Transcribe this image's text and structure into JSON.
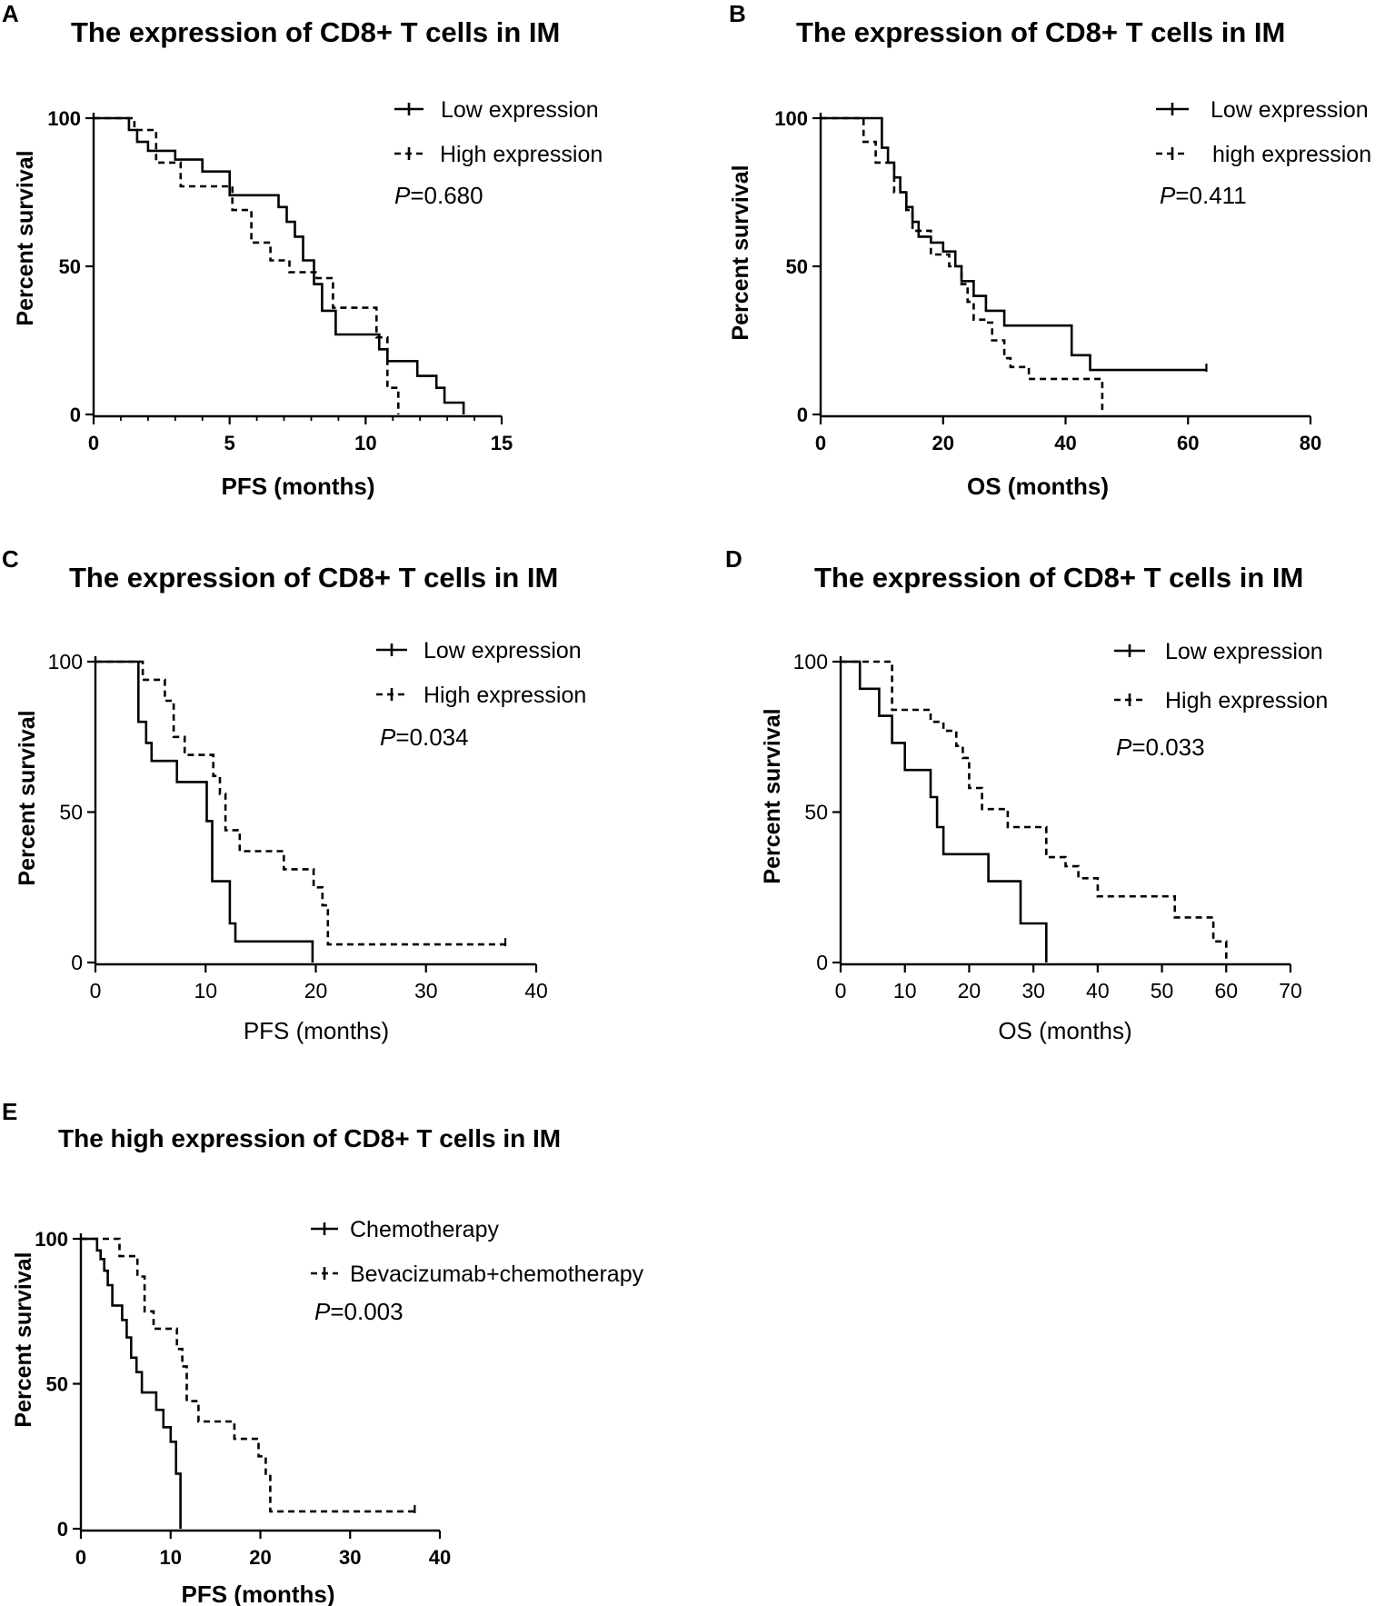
{
  "figure": {
    "panels": [
      {
        "id": "A",
        "letter": "A",
        "title": "The expression of CD8+ T cells in IM",
        "p_label": "P",
        "p_value": "=0.680"
      },
      {
        "id": "B",
        "letter": "B",
        "title": "The expression of CD8+ T cells in IM",
        "p_label": "P",
        "p_value": "=0.411"
      },
      {
        "id": "C",
        "letter": "C",
        "title": "The expression of CD8+ T cells in IM",
        "p_label": "P",
        "p_value": "=0.034"
      },
      {
        "id": "D",
        "letter": "D",
        "title": "The expression of CD8+ T cells in IM",
        "p_label": "P",
        "p_value": "=0.033"
      },
      {
        "id": "E",
        "letter": "E",
        "title": "The high expression of CD8+ T cells in IM",
        "p_label": "P",
        "p_value": "=0.003"
      }
    ]
  },
  "chart_data": [
    {
      "panel": "A",
      "type": "line",
      "subtype": "kaplan-meier",
      "title": "The expression of CD8+ T cells in IM",
      "xlabel": "PFS (months)",
      "ylabel": "Percent survival",
      "xlim": [
        0,
        15
      ],
      "ylim": [
        0,
        100
      ],
      "xticks": [
        0,
        5,
        10,
        15
      ],
      "yticks": [
        0,
        50,
        100
      ],
      "legend_position": "top-right",
      "p_value": "P=0.680",
      "series": [
        {
          "name": "Low expression",
          "style": "solid",
          "x": [
            0,
            1.3,
            1.6,
            2.0,
            3.0,
            4.0,
            5.0,
            6.8,
            7.1,
            7.4,
            7.7,
            8.1,
            8.4,
            8.9,
            10.5,
            10.8,
            11.9,
            12.6,
            12.9,
            13.6
          ],
          "y": [
            100,
            96,
            92,
            89,
            86,
            82,
            74,
            70,
            65,
            60,
            52,
            44,
            35,
            27,
            22,
            18,
            13,
            9,
            4,
            0
          ]
        },
        {
          "name": "High expression",
          "style": "dashed",
          "x": [
            0,
            1.5,
            2.3,
            3.2,
            5.1,
            5.8,
            6.5,
            7.2,
            8.2,
            8.8,
            10.4,
            10.8,
            11.2
          ],
          "y": [
            100,
            96,
            85,
            77,
            69,
            58,
            52,
            48,
            46,
            36,
            26,
            9,
            0
          ]
        }
      ]
    },
    {
      "panel": "B",
      "type": "line",
      "subtype": "kaplan-meier",
      "title": "The expression of CD8+ T cells in IM",
      "xlabel": "OS (months)",
      "ylabel": "Percent survival",
      "xlim": [
        0,
        80
      ],
      "ylim": [
        0,
        100
      ],
      "xticks": [
        0,
        20,
        40,
        60,
        80
      ],
      "yticks": [
        0,
        50,
        100
      ],
      "legend_position": "top-right",
      "p_value": "P=0.411",
      "series": [
        {
          "name": "Low expression",
          "style": "solid",
          "x": [
            0,
            10,
            11,
            12,
            13,
            14,
            15,
            16,
            18,
            20,
            22,
            23,
            25,
            27,
            30,
            41,
            44,
            63
          ],
          "y": [
            100,
            90,
            85,
            80,
            75,
            70,
            65,
            60,
            58,
            55,
            50,
            45,
            40,
            35,
            30,
            20,
            15,
            15
          ]
        },
        {
          "name": "high expression",
          "style": "dashed",
          "x": [
            0,
            7,
            9,
            12,
            14,
            15,
            18,
            21,
            23,
            24,
            25,
            27,
            28,
            30,
            31,
            34,
            40,
            46
          ],
          "y": [
            100,
            92,
            85,
            75,
            69,
            62,
            54,
            50,
            44,
            38,
            32,
            31,
            25,
            19,
            16,
            12,
            12,
            0
          ]
        }
      ]
    },
    {
      "panel": "C",
      "type": "line",
      "subtype": "kaplan-meier",
      "title": "The expression of CD8+ T cells in IM",
      "xlabel": "PFS (months)",
      "ylabel": "Percent survival",
      "xlim": [
        0,
        40
      ],
      "ylim": [
        0,
        100
      ],
      "xticks": [
        0,
        10,
        20,
        30,
        40
      ],
      "yticks": [
        0,
        50,
        100
      ],
      "legend_position": "top-right",
      "p_value": "P=0.034",
      "series": [
        {
          "name": "Low expression",
          "style": "solid",
          "x": [
            0,
            3.9,
            4.6,
            5.1,
            7.4,
            10.1,
            10.6,
            12.2,
            12.7,
            19.7
          ],
          "y": [
            100,
            80,
            73,
            67,
            60,
            47,
            27,
            13,
            7,
            0
          ]
        },
        {
          "name": "High expression",
          "style": "dashed",
          "x": [
            0,
            4.3,
            6.3,
            7.1,
            8.1,
            10.7,
            11.3,
            11.8,
            13.1,
            17.1,
            19.8,
            20.6,
            21.1,
            37.2
          ],
          "y": [
            100,
            94,
            87,
            75,
            69,
            62,
            56,
            44,
            37,
            31,
            25,
            19,
            6,
            6
          ]
        }
      ]
    },
    {
      "panel": "D",
      "type": "line",
      "subtype": "kaplan-meier",
      "title": "The expression of CD8+ T cells in IM",
      "xlabel": "OS (months)",
      "ylabel": "Percent survival",
      "xlim": [
        0,
        70
      ],
      "ylim": [
        0,
        100
      ],
      "xticks": [
        0,
        10,
        20,
        30,
        40,
        50,
        60,
        70
      ],
      "yticks": [
        0,
        50,
        100
      ],
      "legend_position": "top-right",
      "p_value": "P=0.033",
      "series": [
        {
          "name": "Low expression",
          "style": "solid",
          "x": [
            0,
            3,
            6,
            8,
            10,
            14,
            15,
            16,
            23,
            28,
            32
          ],
          "y": [
            100,
            91,
            82,
            73,
            64,
            55,
            45,
            36,
            27,
            13,
            0
          ]
        },
        {
          "name": "High expression",
          "style": "dashed",
          "x": [
            0,
            8,
            14,
            16,
            18,
            19,
            20,
            22,
            26,
            32,
            35,
            37,
            40,
            52,
            58,
            60
          ],
          "y": [
            100,
            84,
            80,
            77,
            72,
            68,
            58,
            51,
            45,
            35,
            32,
            28,
            22,
            15,
            7,
            0
          ]
        }
      ]
    },
    {
      "panel": "E",
      "type": "line",
      "subtype": "kaplan-meier",
      "title": "The high expression of CD8+ T cells in IM",
      "xlabel": "PFS (months)",
      "ylabel": "Percent survival",
      "xlim": [
        0,
        40
      ],
      "ylim": [
        0,
        100
      ],
      "xticks": [
        0,
        10,
        20,
        30,
        40
      ],
      "yticks": [
        0,
        50,
        100
      ],
      "legend_position": "top-right",
      "p_value": "P=0.003",
      "series": [
        {
          "name": "Chemotherapy",
          "style": "solid",
          "x": [
            0,
            1.8,
            2.2,
            2.6,
            3.0,
            3.5,
            4.6,
            5.1,
            5.6,
            6.2,
            6.8,
            8.4,
            9.2,
            10.0,
            10.6,
            11.1
          ],
          "y": [
            100,
            96,
            93,
            89,
            84,
            77,
            72,
            66,
            59,
            54,
            47,
            41,
            35,
            30,
            19,
            0
          ]
        },
        {
          "name": "Bevacizumab+chemotherapy",
          "style": "dashed",
          "x": [
            0,
            4.3,
            6.3,
            7.1,
            8.1,
            10.7,
            11.3,
            11.8,
            13.1,
            17.1,
            19.8,
            20.6,
            21.1,
            37.2
          ],
          "y": [
            100,
            94,
            87,
            75,
            69,
            62,
            56,
            44,
            37,
            31,
            25,
            19,
            6,
            6
          ]
        }
      ]
    }
  ]
}
